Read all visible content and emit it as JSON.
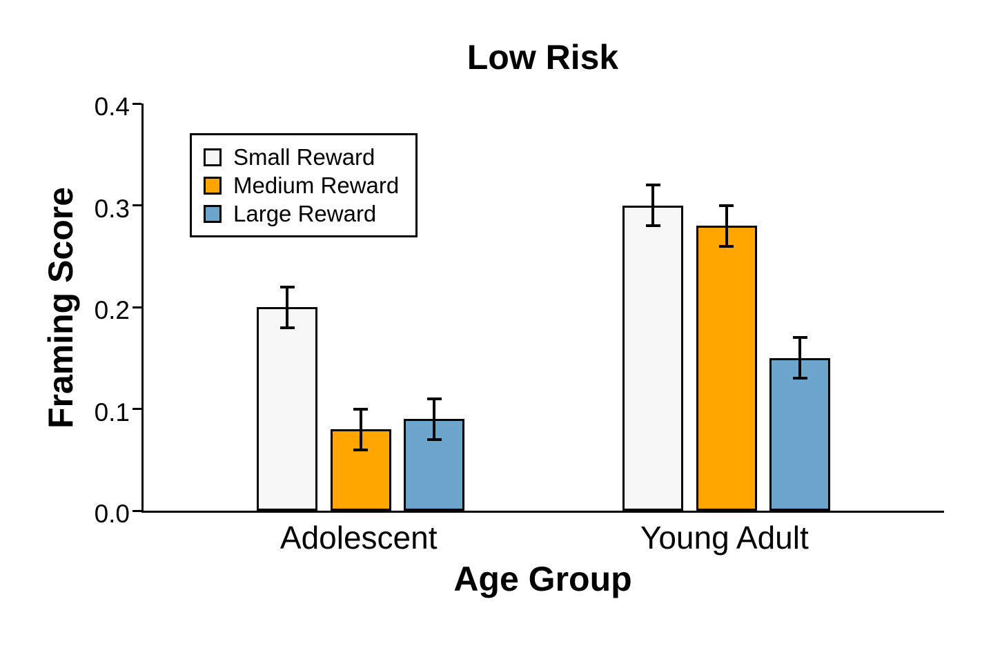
{
  "chart_data": {
    "type": "bar",
    "title": "Low Risk",
    "xlabel": "Age Group",
    "ylabel": "Framing Score",
    "ylim": [
      0,
      0.4
    ],
    "yticks": [
      0,
      0.1,
      0.2,
      0.3,
      0.4
    ],
    "ytick_labels": [
      "0.0",
      "0.1",
      "0.2",
      "0.3",
      "0.4"
    ],
    "categories": [
      "Adolescent",
      "Young Adult"
    ],
    "series": [
      {
        "name": "Small Reward",
        "color": "#F6F6F6",
        "values": [
          0.2,
          0.3
        ],
        "errors": [
          0.02,
          0.02
        ]
      },
      {
        "name": "Medium Reward",
        "color": "#FFA500",
        "values": [
          0.08,
          0.28
        ],
        "errors": [
          0.02,
          0.02
        ]
      },
      {
        "name": "Large Reward",
        "color": "#6CA6CD",
        "values": [
          0.09,
          0.15
        ],
        "errors": [
          0.02,
          0.02
        ]
      }
    ],
    "error_bars": true,
    "grid": false,
    "legend_position": "upper-left-inside",
    "axis_color": "#000000",
    "background_color": "#FFFFFF"
  }
}
